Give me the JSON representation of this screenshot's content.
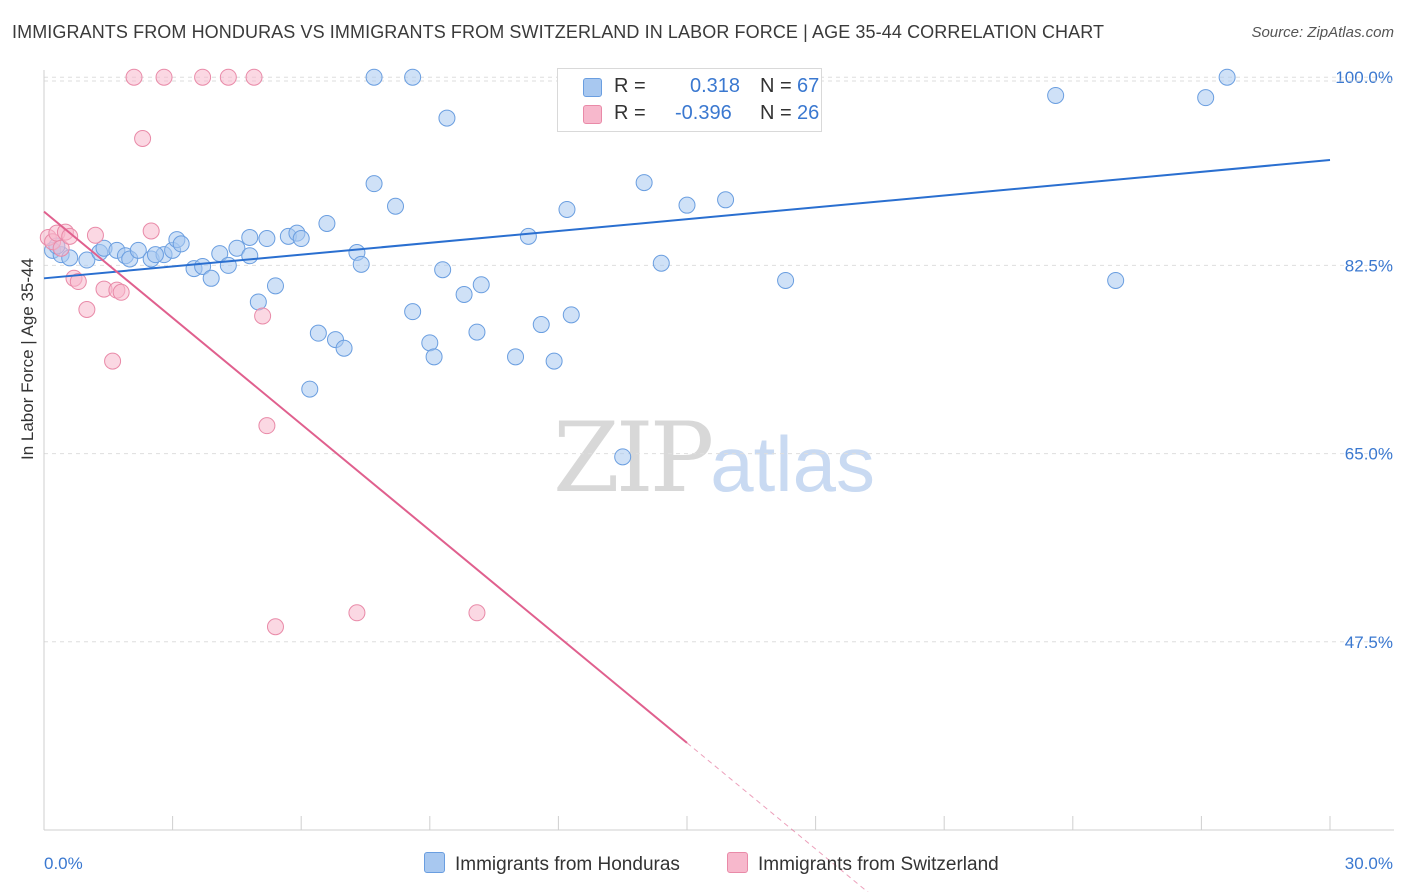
{
  "title": "IMMIGRANTS FROM HONDURAS VS IMMIGRANTS FROM SWITZERLAND IN LABOR FORCE | AGE 35-44 CORRELATION CHART",
  "source": "Source: ZipAtlas.com",
  "watermark": {
    "zip": "ZIP",
    "atlas": "atlas"
  },
  "legend": {
    "r_label": "R =",
    "n_label": "N =",
    "rows": [
      {
        "r": "0.318",
        "n": "67",
        "color": "#a8c8f0",
        "border": "#6a9ee0"
      },
      {
        "r": "-0.396",
        "n": "26",
        "color": "#f7b8cc",
        "border": "#e98aa8"
      }
    ]
  },
  "bottom_legend": [
    {
      "label": "Immigrants from Honduras",
      "color": "#a8c8f0",
      "border": "#6a9ee0"
    },
    {
      "label": "Immigrants from Switzerland",
      "color": "#f7b8cc",
      "border": "#e98aa8"
    }
  ],
  "chart_data": {
    "type": "scatter",
    "title": "IMMIGRANTS FROM HONDURAS VS IMMIGRANTS FROM SWITZERLAND IN LABOR FORCE | AGE 35-44 CORRELATION CHART",
    "xlabel": "",
    "ylabel": "In Labor Force | Age 35-44",
    "xlim": [
      0,
      30
    ],
    "ylim": [
      30,
      101.6
    ],
    "x_tick_labels": [
      "0.0%",
      "30.0%"
    ],
    "y_ticks": [
      47.5,
      65.0,
      82.5,
      100.0
    ],
    "y_tick_labels": [
      "47.5%",
      "65.0%",
      "82.5%",
      "100.0%"
    ],
    "grid": true,
    "legend_position": "top-center",
    "series": [
      {
        "name": "Immigrants from Honduras",
        "color": "#6a9ee0",
        "fill": "#a8c8f0",
        "trend": {
          "x": [
            0,
            30
          ],
          "y": [
            81.3,
            92.3
          ],
          "color": "#2a6fd0"
        },
        "points": [
          [
            0.2,
            83.9
          ],
          [
            0.4,
            83.5
          ],
          [
            0.6,
            83.2
          ],
          [
            1.0,
            83.0
          ],
          [
            1.3,
            83.7
          ],
          [
            1.4,
            84.1
          ],
          [
            1.7,
            83.9
          ],
          [
            1.9,
            83.4
          ],
          [
            2.0,
            83.1
          ],
          [
            2.2,
            83.9
          ],
          [
            2.5,
            83.1
          ],
          [
            2.8,
            83.5
          ],
          [
            3.0,
            83.9
          ],
          [
            3.1,
            84.9
          ],
          [
            3.2,
            84.5
          ],
          [
            3.5,
            82.2
          ],
          [
            3.7,
            82.4
          ],
          [
            3.9,
            81.3
          ],
          [
            4.1,
            83.6
          ],
          [
            4.3,
            82.5
          ],
          [
            4.5,
            84.1
          ],
          [
            4.8,
            85.1
          ],
          [
            5.0,
            79.1
          ],
          [
            5.2,
            85.0
          ],
          [
            5.4,
            80.6
          ],
          [
            5.7,
            85.2
          ],
          [
            5.9,
            85.5
          ],
          [
            6.0,
            85.0
          ],
          [
            6.2,
            71.0
          ],
          [
            6.4,
            76.2
          ],
          [
            6.6,
            86.4
          ],
          [
            6.8,
            75.6
          ],
          [
            7.0,
            74.8
          ],
          [
            7.3,
            83.7
          ],
          [
            7.4,
            82.6
          ],
          [
            7.7,
            100.0
          ],
          [
            7.7,
            90.1
          ],
          [
            8.2,
            88.0
          ],
          [
            8.6,
            78.2
          ],
          [
            8.6,
            100.0
          ],
          [
            9.0,
            75.3
          ],
          [
            9.1,
            74.0
          ],
          [
            9.3,
            82.1
          ],
          [
            9.4,
            96.2
          ],
          [
            9.8,
            79.8
          ],
          [
            10.1,
            76.3
          ],
          [
            10.2,
            80.7
          ],
          [
            11.0,
            74.0
          ],
          [
            11.3,
            85.2
          ],
          [
            11.6,
            77.0
          ],
          [
            11.9,
            73.6
          ],
          [
            12.2,
            87.7
          ],
          [
            12.3,
            77.9
          ],
          [
            13.1,
            100.0
          ],
          [
            13.5,
            64.7
          ],
          [
            14.0,
            90.2
          ],
          [
            14.4,
            82.7
          ],
          [
            15.0,
            88.1
          ],
          [
            15.9,
            88.6
          ],
          [
            17.3,
            81.1
          ],
          [
            23.6,
            98.3
          ],
          [
            25.0,
            81.1
          ],
          [
            27.1,
            98.1
          ],
          [
            27.6,
            100.0
          ],
          [
            0.3,
            84.3
          ],
          [
            2.6,
            83.5
          ],
          [
            4.8,
            83.4
          ]
        ]
      },
      {
        "name": "Immigrants from Switzerland",
        "color": "#e98aa8",
        "fill": "#f7b8cc",
        "trend": {
          "x": [
            0,
            15
          ],
          "y": [
            87.5,
            38.1
          ],
          "dash_to": [
            19.5,
            23.3
          ],
          "color": "#e0608e"
        },
        "points": [
          [
            0.1,
            85.1
          ],
          [
            0.2,
            84.7
          ],
          [
            0.3,
            85.5
          ],
          [
            0.4,
            84.1
          ],
          [
            0.5,
            85.6
          ],
          [
            0.6,
            85.2
          ],
          [
            0.7,
            81.3
          ],
          [
            0.8,
            81.0
          ],
          [
            1.0,
            78.4
          ],
          [
            1.2,
            85.3
          ],
          [
            1.4,
            80.3
          ],
          [
            1.6,
            73.6
          ],
          [
            1.7,
            80.2
          ],
          [
            1.8,
            80.0
          ],
          [
            2.1,
            100.0
          ],
          [
            2.3,
            94.3
          ],
          [
            2.5,
            85.7
          ],
          [
            2.8,
            100.0
          ],
          [
            3.7,
            100.0
          ],
          [
            4.3,
            100.0
          ],
          [
            4.9,
            100.0
          ],
          [
            5.1,
            77.8
          ],
          [
            5.2,
            67.6
          ],
          [
            5.4,
            48.9
          ],
          [
            7.3,
            50.2
          ],
          [
            10.1,
            50.2
          ]
        ]
      }
    ]
  }
}
